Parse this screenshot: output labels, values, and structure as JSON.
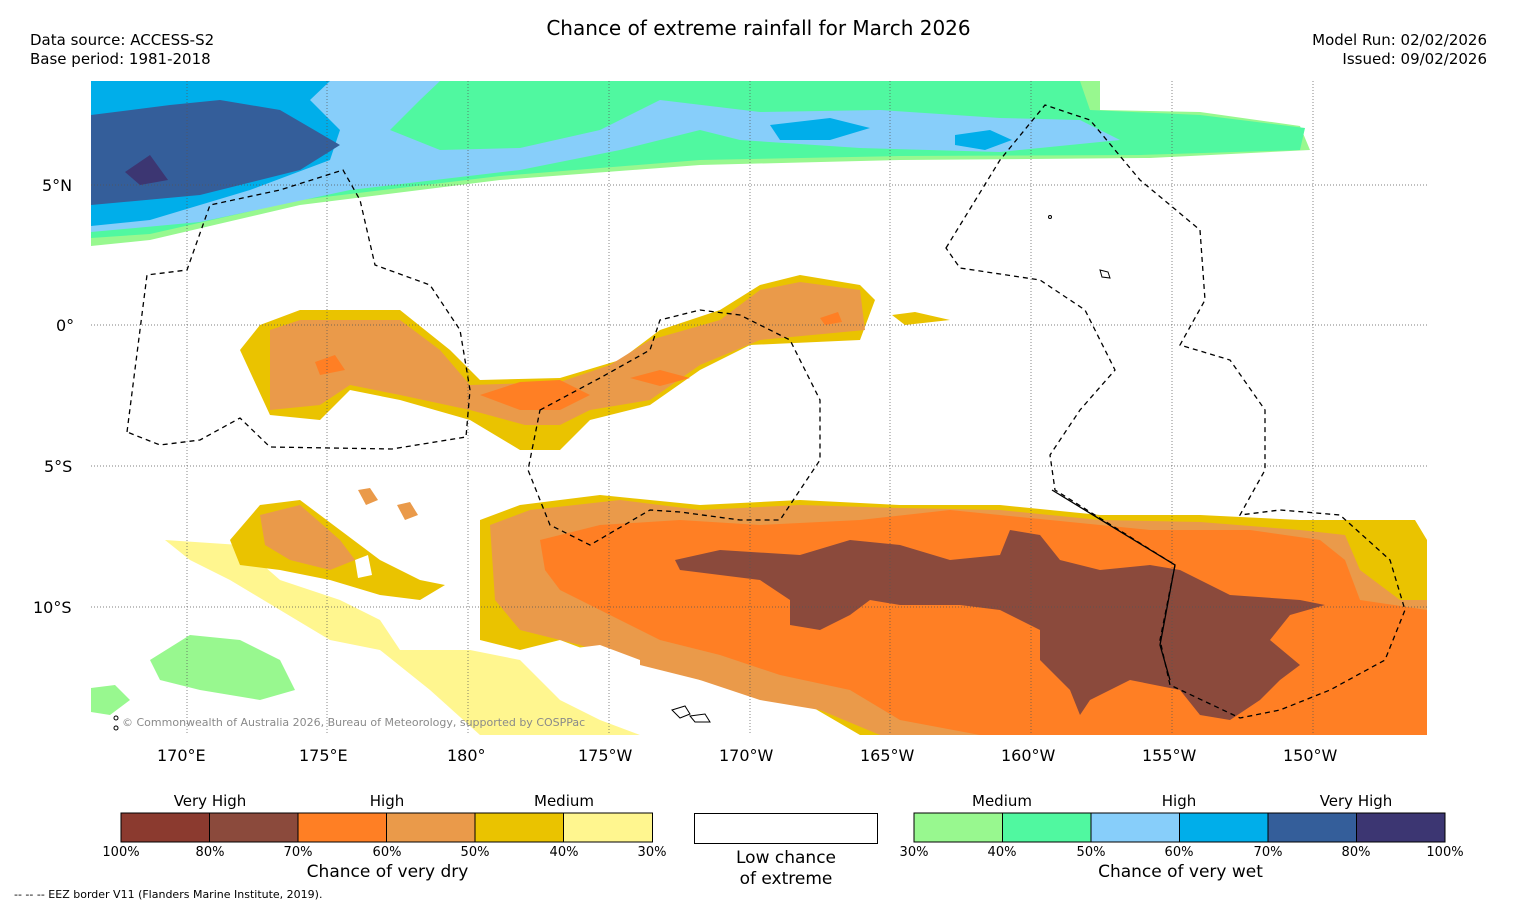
{
  "title": "Chance of extreme rainfall for March 2026",
  "data_source": "Data source: ACCESS-S2",
  "base_period": "Base period: 1981-2018",
  "model_run": "Model Run: 02/02/2026",
  "issued": "Issued: 09/02/2026",
  "copyright": "© Commonwealth of Australia 2026, Bureau of Meteorology, supported by COSPPac",
  "footnote": "--  --  -- EEZ border V11 (Flanders Marine Institute, 2019).",
  "map": {
    "lat_labels": [
      "5°N",
      "0°",
      "5°S",
      "10°S"
    ],
    "lon_labels": [
      "170°E",
      "175°E",
      "180°",
      "175°W",
      "170°W",
      "165°W",
      "160°W",
      "155°W",
      "150°W"
    ]
  },
  "legend_dry": {
    "headers": [
      "Very High",
      "High",
      "Medium"
    ],
    "colors": [
      "#8B3A2F",
      "#8B4A3C",
      "#FF7F24",
      "#EA9A4A",
      "#EAC300",
      "#FFF68F"
    ],
    "ticks": [
      "100%",
      "80%",
      "70%",
      "60%",
      "50%",
      "40%",
      "30%"
    ],
    "caption": "Chance of very dry"
  },
  "legend_low": {
    "caption_line1": "Low chance",
    "caption_line2": "of extreme"
  },
  "legend_wet": {
    "headers": [
      "Medium",
      "High",
      "Very High"
    ],
    "colors": [
      "#98F88F",
      "#50F8A0",
      "#87CEFA",
      "#00AEEA",
      "#345E9A",
      "#3C3672"
    ],
    "ticks": [
      "30%",
      "40%",
      "50%",
      "60%",
      "70%",
      "80%",
      "100%"
    ],
    "caption": "Chance of very wet"
  }
}
